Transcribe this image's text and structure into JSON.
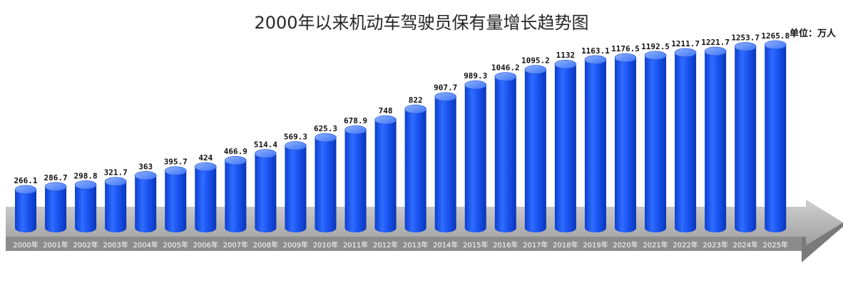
{
  "unit_label": "单位：万人",
  "colors": {
    "bar": "#1654f0",
    "bar_highlight": "#4e86ff",
    "bar_top": "#7ea6ff",
    "arrow": "#a6a6a6",
    "arrow_dark": "#7f7f7f"
  },
  "chart_data": {
    "type": "bar",
    "title": "2000年以来机动车驾驶员保有量增长趋势图",
    "categories": [
      "2000年",
      "2001年",
      "2002年",
      "2003年",
      "2004年",
      "2005年",
      "2006年",
      "2007年",
      "2008年",
      "2009年",
      "2010年",
      "2011年",
      "2012年",
      "2013年",
      "2014年",
      "2015年",
      "2016年",
      "2017年",
      "2018年",
      "2019年",
      "2020年",
      "2021年",
      "2022年",
      "2023年",
      "2024年",
      "2025年"
    ],
    "values": [
      266.1,
      286.7,
      298.8,
      321.7,
      363,
      395.7,
      424,
      466.9,
      514.4,
      569.3,
      625.3,
      678.9,
      748,
      822,
      907.7,
      989.3,
      1046.2,
      1095.2,
      1132,
      1163.1,
      1176.5,
      1192.5,
      1211.7,
      1221.7,
      1253.7,
      1265.8
    ],
    "value_labels": [
      "266.1",
      "286.7",
      "298.8",
      "321.7",
      "363",
      "395.7",
      "424",
      "466.9",
      "514.4",
      "569.3",
      "625.3",
      "678.9",
      "748",
      "822",
      "907.7",
      "989.3",
      "1046.2",
      "1095.2",
      "1132",
      "1163.1",
      "1176.5",
      "1192.5",
      "1211.7",
      "1221.7",
      "1253.7",
      "1265.8"
    ],
    "bar_shape": "cylinder",
    "grid": false,
    "legend": "none"
  }
}
